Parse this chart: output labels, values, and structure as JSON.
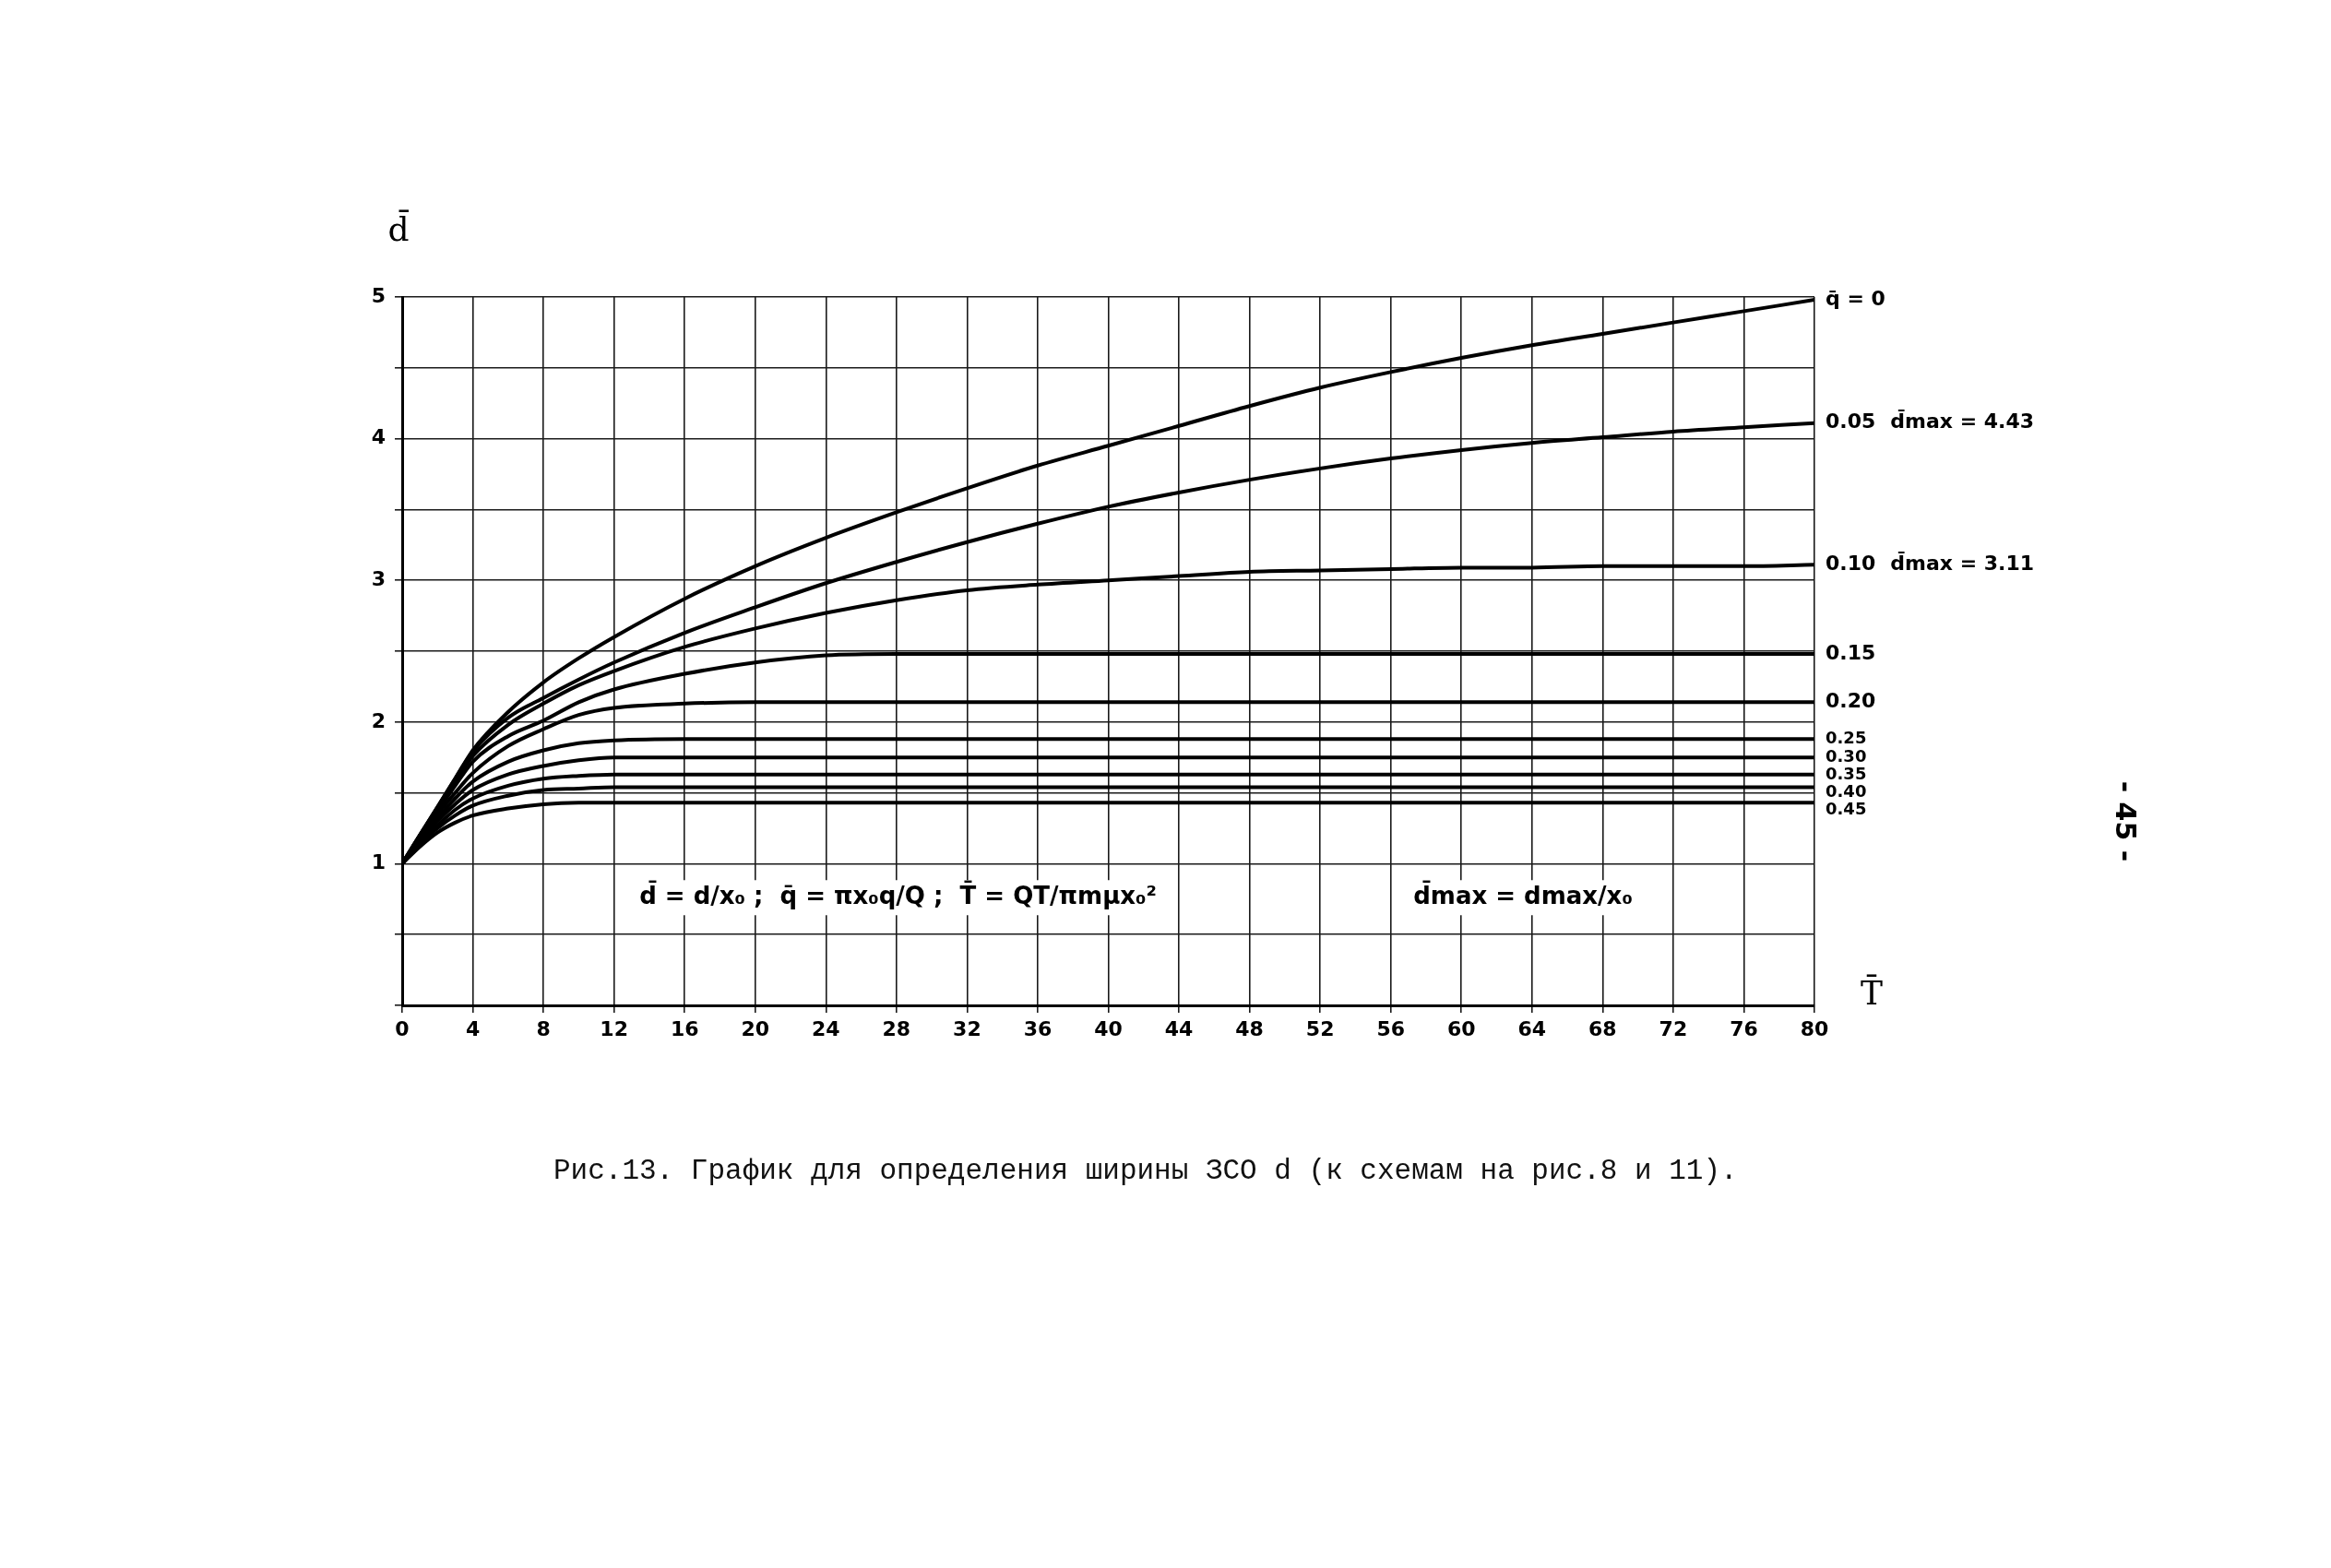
{
  "chart_data": {
    "type": "line",
    "title": "Рис.13. График для определения ширины ЗСО d (к схемам на рис.8 и 11).",
    "xlabel": "T̄",
    "ylabel": "d̄",
    "x": [
      0,
      1,
      2,
      3,
      4,
      6,
      8,
      10,
      12,
      16,
      20,
      24,
      28,
      32,
      36,
      40,
      44,
      48,
      52,
      56,
      60,
      64,
      68,
      72,
      76,
      80
    ],
    "series": [
      {
        "name": "q̄ = 0",
        "color": "#000000",
        "values": [
          1,
          1.2,
          1.4,
          1.6,
          1.8,
          2.07,
          2.28,
          2.45,
          2.6,
          2.87,
          3.1,
          3.3,
          3.48,
          3.65,
          3.81,
          3.95,
          4.09,
          4.23,
          4.36,
          4.47,
          4.57,
          4.66,
          4.74,
          4.82,
          4.9,
          4.98
        ]
      },
      {
        "name": "0.05",
        "color": "#000000",
        "values": [
          1,
          1.2,
          1.4,
          1.6,
          1.79,
          2.03,
          2.17,
          2.3,
          2.42,
          2.63,
          2.81,
          2.98,
          3.13,
          3.27,
          3.4,
          3.52,
          3.62,
          3.71,
          3.79,
          3.86,
          3.92,
          3.97,
          4.01,
          4.05,
          4.08,
          4.11
        ]
      },
      {
        "name": "0.10",
        "color": "#000000",
        "values": [
          1,
          1.2,
          1.39,
          1.58,
          1.76,
          1.98,
          2.13,
          2.26,
          2.36,
          2.53,
          2.66,
          2.77,
          2.86,
          2.93,
          2.97,
          3.0,
          3.03,
          3.06,
          3.07,
          3.08,
          3.09,
          3.09,
          3.1,
          3.1,
          3.1,
          3.11
        ]
      },
      {
        "name": "0.15",
        "color": "#000000",
        "values": [
          1,
          1.19,
          1.37,
          1.55,
          1.72,
          1.9,
          2.01,
          2.14,
          2.23,
          2.34,
          2.42,
          2.47,
          2.48,
          2.48,
          2.48,
          2.48,
          2.48,
          2.48,
          2.48,
          2.48,
          2.48,
          2.48,
          2.48,
          2.48,
          2.48,
          2.48
        ]
      },
      {
        "name": "0.20",
        "color": "#000000",
        "values": [
          1,
          1.18,
          1.35,
          1.5,
          1.64,
          1.83,
          1.95,
          2.05,
          2.1,
          2.13,
          2.14,
          2.14,
          2.14,
          2.14,
          2.14,
          2.14,
          2.14,
          2.14,
          2.14,
          2.14,
          2.14,
          2.14,
          2.14,
          2.14,
          2.14,
          2.14
        ]
      },
      {
        "name": "0.25",
        "color": "#000000",
        "values": [
          1,
          1.17,
          1.32,
          1.46,
          1.58,
          1.72,
          1.8,
          1.85,
          1.87,
          1.88,
          1.88,
          1.88,
          1.88,
          1.88,
          1.88,
          1.88,
          1.88,
          1.88,
          1.88,
          1.88,
          1.88,
          1.88,
          1.88,
          1.88,
          1.88,
          1.88
        ]
      },
      {
        "name": "0.30",
        "color": "#000000",
        "values": [
          1,
          1.16,
          1.3,
          1.42,
          1.52,
          1.63,
          1.69,
          1.73,
          1.75,
          1.75,
          1.75,
          1.75,
          1.75,
          1.75,
          1.75,
          1.75,
          1.75,
          1.75,
          1.75,
          1.75,
          1.75,
          1.75,
          1.75,
          1.75,
          1.75,
          1.75
        ]
      },
      {
        "name": "0.35",
        "color": "#000000",
        "values": [
          1,
          1.15,
          1.27,
          1.38,
          1.46,
          1.55,
          1.6,
          1.62,
          1.63,
          1.63,
          1.63,
          1.63,
          1.63,
          1.63,
          1.63,
          1.63,
          1.63,
          1.63,
          1.63,
          1.63,
          1.63,
          1.63,
          1.63,
          1.63,
          1.63,
          1.63
        ]
      },
      {
        "name": "0.40",
        "color": "#000000",
        "values": [
          1,
          1.14,
          1.25,
          1.34,
          1.41,
          1.48,
          1.52,
          1.53,
          1.54,
          1.54,
          1.54,
          1.54,
          1.54,
          1.54,
          1.54,
          1.54,
          1.54,
          1.54,
          1.54,
          1.54,
          1.54,
          1.54,
          1.54,
          1.54,
          1.54,
          1.54
        ]
      },
      {
        "name": "0.45",
        "color": "#000000",
        "values": [
          1,
          1.12,
          1.22,
          1.29,
          1.34,
          1.39,
          1.42,
          1.43,
          1.43,
          1.43,
          1.43,
          1.43,
          1.43,
          1.43,
          1.43,
          1.43,
          1.43,
          1.43,
          1.43,
          1.43,
          1.43,
          1.43,
          1.43,
          1.43,
          1.43,
          1.43
        ]
      }
    ],
    "xlim": [
      0,
      80
    ],
    "xticks": [
      0,
      4,
      8,
      12,
      16,
      20,
      24,
      28,
      32,
      36,
      40,
      44,
      48,
      52,
      56,
      60,
      64,
      68,
      72,
      76,
      80
    ],
    "ylim": [
      0,
      5
    ],
    "yticks": [
      {
        "value": 0,
        "label": null
      },
      {
        "value": 0.5,
        "label": null
      },
      1,
      {
        "value": 1.5,
        "label": null
      },
      2,
      {
        "value": 2.5,
        "label": null
      },
      3,
      {
        "value": 3.5,
        "label": null
      },
      4,
      {
        "value": 4.5,
        "label": null
      },
      5
    ],
    "grid": true,
    "legend": false,
    "marker": "none",
    "line_style": "solid",
    "annotations": [
      "d̄ = d/x₀ ;  q̄ = πx₀q/Q ;  T̄ = QT/πmμx₀²",
      "d̄max = dmax/x₀",
      "d̄max = 4.43",
      "d̄max = 3.11",
      "- 45 -"
    ]
  }
}
